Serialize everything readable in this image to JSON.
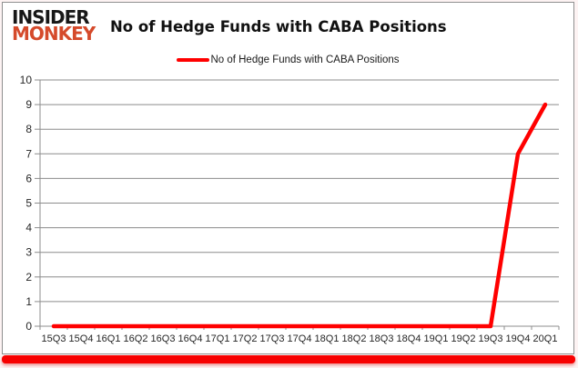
{
  "logo": {
    "line1": "INSIDER",
    "line2": "MONKEY"
  },
  "title": "No of Hedge Funds with CABA Positions",
  "legend": {
    "label": "No of Hedge Funds with CABA Positions"
  },
  "colors": {
    "line": "#ff0000",
    "grid": "#8c8c8c",
    "axis_text": "#262626",
    "logo_black": "#171717",
    "logo_red": "#d54a2b",
    "bottom_bar": "#f70000",
    "panel_border": "#8f8f8f"
  },
  "chart_data": {
    "type": "line",
    "title": "No of Hedge Funds with CABA Positions",
    "categories": [
      "15Q3",
      "15Q4",
      "16Q1",
      "16Q2",
      "16Q3",
      "16Q4",
      "17Q1",
      "17Q2",
      "17Q3",
      "17Q4",
      "18Q1",
      "18Q2",
      "18Q3",
      "18Q4",
      "19Q1",
      "19Q2",
      "19Q3",
      "19Q4",
      "20Q1"
    ],
    "series": [
      {
        "name": "No of Hedge Funds with CABA Positions",
        "color": "#ff0000",
        "values": [
          0,
          0,
          0,
          0,
          0,
          0,
          0,
          0,
          0,
          0,
          0,
          0,
          0,
          0,
          0,
          0,
          0,
          7,
          9
        ]
      }
    ],
    "ylim": [
      0,
      10
    ],
    "ytick_step": 1,
    "yticks": [
      0,
      1,
      2,
      3,
      4,
      5,
      6,
      7,
      8,
      9,
      10
    ],
    "grid": true,
    "legend_position": "top-center"
  }
}
